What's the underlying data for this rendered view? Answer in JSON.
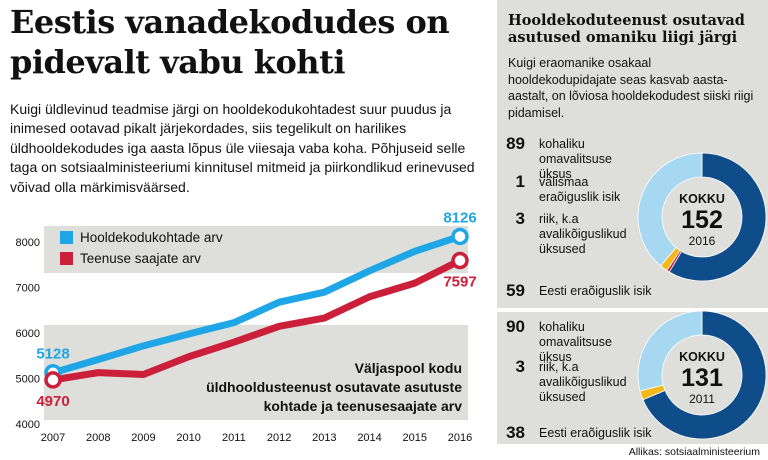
{
  "headline": "Eestis vanadekodudes on pidevalt vabu kohti",
  "intro": "Kuigi üldlevinud teadmise järgi on hooldekodukohtadest suur puudus ja inimesed ootavad pikalt järjekordades, siis tegelikult on harilikes üldhooldekodudes iga aasta lõpus üle viiesaja vaba koha. Põhjuseid selle taga on sotsiaalministeeriumi kinnitusel mitmeid ja piirkondlikud erinevused võivad olla märkimisväärsed.",
  "chart_data": [
    {
      "type": "line",
      "x": [
        2007,
        2008,
        2009,
        2010,
        2011,
        2012,
        2013,
        2014,
        2015,
        2016
      ],
      "series": [
        {
          "name": "Hooldekodukohtade arv",
          "color": "#1fa6e6",
          "values": [
            5128,
            5420,
            5720,
            5980,
            6230,
            6680,
            6900,
            7370,
            7800,
            8126
          ]
        },
        {
          "name": "Teenuse saajate arv",
          "color": "#cc1f3a",
          "values": [
            4970,
            5130,
            5090,
            5480,
            5800,
            6150,
            6330,
            6800,
            7100,
            7597
          ]
        }
      ],
      "point_labels": {
        "blue_start": "5128",
        "blue_end": "8126",
        "red_start": "4970",
        "red_end": "7597"
      },
      "y_ticks": [
        "4000",
        "5000",
        "6000",
        "7000",
        "8000"
      ],
      "x_ticks": [
        "2007",
        "2008",
        "2009",
        "2010",
        "2011",
        "2012",
        "2013",
        "2014",
        "2015",
        "2016"
      ],
      "ylim": [
        4000,
        8500
      ],
      "annotation": [
        "Väljaspool kodu",
        "üldhooldusteenust osutavate asutuste",
        "kohtade ja teenusesaajate arv"
      ]
    },
    {
      "type": "pie",
      "title": "Hooldekoduteenust osutavad asutused omaniku liigi järgi",
      "center": {
        "label": "KOKKU",
        "total": "152",
        "year": "2016"
      },
      "slices": [
        {
          "value": 89,
          "num": "89",
          "label": "kohaliku omavalitsuse üksus",
          "color": "#0f4c8a"
        },
        {
          "value": 1,
          "num": "1",
          "label": "välismaa eraõiguslik isik",
          "color": "#c8102e"
        },
        {
          "value": 3,
          "num": "3",
          "label": "riik, k.a avalikõiguslikud üksused",
          "color": "#f2b81c"
        },
        {
          "value": 59,
          "num": "59",
          "label": "Eesti eraõiguslik isik",
          "color": "#a6d8f2"
        }
      ]
    },
    {
      "type": "pie",
      "center": {
        "label": "KOKKU",
        "total": "131",
        "year": "2011"
      },
      "slices": [
        {
          "value": 90,
          "num": "90",
          "label": "kohaliku omavalitsuse üksus",
          "color": "#0f4c8a"
        },
        {
          "value": 3,
          "num": "3",
          "label": "riik, k.a avalikõiguslikud üksused",
          "color": "#f2b81c"
        },
        {
          "value": 38,
          "num": "38",
          "label": "Eesti eraõiguslik isik",
          "color": "#a6d8f2"
        }
      ]
    }
  ],
  "panel_desc": "Kuigi eraomanike osakaal hooldekodupidajate seas kasvab aasta-aastalt, on lõviosa hooldekodudest siiski riigi pidamisel.",
  "source": "Allikas: sotsiaalministeerium"
}
